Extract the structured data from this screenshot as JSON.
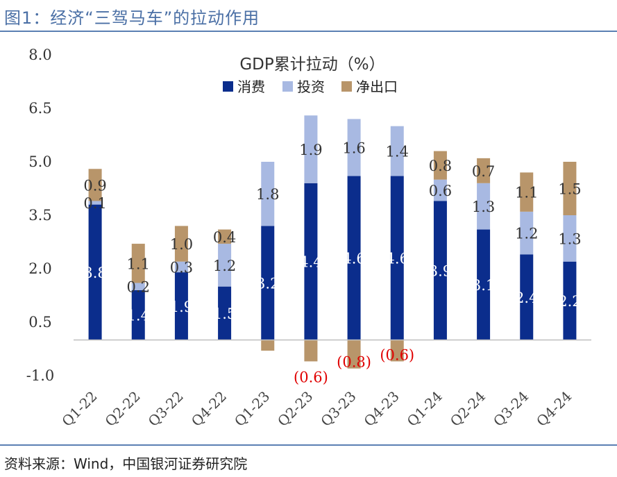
{
  "header": {
    "title": "图1：经济“三驾马车”的拉动作用"
  },
  "footer": {
    "source": "资料来源：Wind，中国银河证券研究院"
  },
  "chart_data": {
    "type": "bar",
    "stacked": true,
    "title": "GDP累计拉动（%）",
    "categories": [
      "Q1-22",
      "Q2-22",
      "Q3-22",
      "Q4-22",
      "Q1-23",
      "Q2-23",
      "Q3-23",
      "Q4-23",
      "Q1-24",
      "Q2-24",
      "Q3-24",
      "Q4-24"
    ],
    "ylim": [
      -1.0,
      8.0
    ],
    "yticks": [
      "8.0",
      "6.5",
      "5.0",
      "3.5",
      "2.0",
      "0.5",
      "-1.0"
    ],
    "ytick_values": [
      8.0,
      6.5,
      5.0,
      3.5,
      2.0,
      0.5,
      -1.0
    ],
    "legend_position": "top",
    "series": [
      {
        "name": "消费",
        "color": "#0b2d8c",
        "label_color": "#ffffff",
        "values": [
          3.8,
          1.4,
          1.9,
          1.5,
          3.2,
          4.4,
          4.6,
          4.6,
          3.9,
          3.1,
          2.4,
          2.2
        ],
        "labels": [
          "3.8",
          "1.4",
          "1.9",
          "1.5",
          "3.2",
          "4.4",
          "4.6",
          "4.6",
          "3.9",
          "3.1",
          "2.4",
          "2.2"
        ]
      },
      {
        "name": "投资",
        "color": "#a8b9e2",
        "label_color": "#333333",
        "values": [
          0.1,
          0.2,
          0.3,
          1.2,
          1.8,
          1.9,
          1.6,
          1.4,
          0.6,
          1.3,
          1.2,
          1.3
        ],
        "labels": [
          "0.1",
          "0.2",
          "0.3",
          "1.2",
          "1.8",
          "1.9",
          "1.6",
          "1.4",
          "0.6",
          "1.3",
          "1.2",
          "1.3"
        ]
      },
      {
        "name": "净出口",
        "color": "#b8956a",
        "label_color": "#333333",
        "negative_label_color": "#e00000",
        "values": [
          0.9,
          1.1,
          1.0,
          0.4,
          -0.3,
          -0.6,
          -0.8,
          -0.6,
          0.8,
          0.7,
          1.1,
          1.5
        ],
        "labels": [
          "0.9",
          "1.1",
          "1.0",
          "0.4",
          "",
          "(0.6)",
          "(0.8)",
          "(0.6)",
          "0.8",
          "0.7",
          "1.1",
          "1.5"
        ]
      }
    ]
  }
}
